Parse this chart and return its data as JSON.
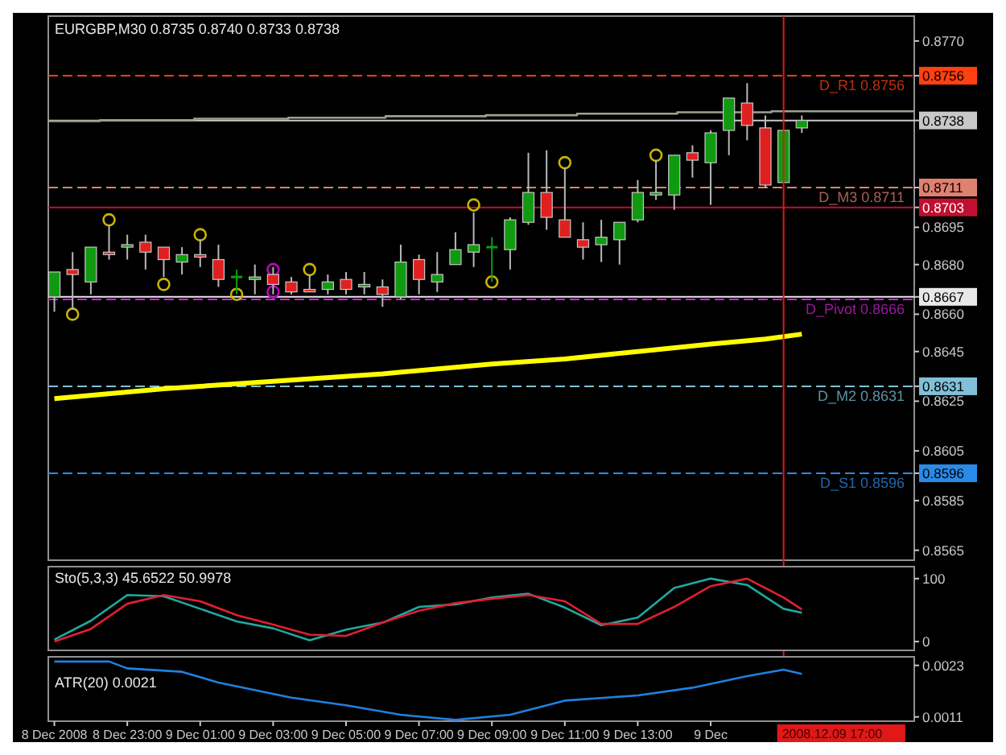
{
  "chart_data": [
    {
      "type": "candlestick",
      "title": "EURGBP,M30  0.8735 0.8740 0.8733 0.8738",
      "x": [
        "2008-12-08T21:00",
        "2008-12-08T21:30",
        "2008-12-08T22:00",
        "2008-12-08T22:30",
        "2008-12-08T23:00",
        "2008-12-08T23:30",
        "2008-12-09T00:00",
        "2008-12-09T00:30",
        "2008-12-09T01:00",
        "2008-12-09T01:30",
        "2008-12-09T02:00",
        "2008-12-09T02:30",
        "2008-12-09T03:00",
        "2008-12-09T03:30",
        "2008-12-09T04:00",
        "2008-12-09T04:30",
        "2008-12-09T05:00",
        "2008-12-09T05:30",
        "2008-12-09T06:00",
        "2008-12-09T06:30",
        "2008-12-09T07:00",
        "2008-12-09T07:30",
        "2008-12-09T08:00",
        "2008-12-09T08:30",
        "2008-12-09T09:00",
        "2008-12-09T09:30",
        "2008-12-09T10:00",
        "2008-12-09T10:30",
        "2008-12-09T11:00",
        "2008-12-09T11:30",
        "2008-12-09T12:00",
        "2008-12-09T12:30",
        "2008-12-09T13:00",
        "2008-12-09T13:30",
        "2008-12-09T14:00",
        "2008-12-09T14:30",
        "2008-12-09T15:00",
        "2008-12-09T15:30",
        "2008-12-09T16:00",
        "2008-12-09T16:30",
        "2008-12-09T17:00",
        "2008-12-09T17:30"
      ],
      "ohlc": [
        [
          0.8667,
          0.8677,
          0.8661,
          0.8677
        ],
        [
          0.8678,
          0.8685,
          0.8662,
          0.8676
        ],
        [
          0.8673,
          0.8687,
          0.8668,
          0.8687
        ],
        [
          0.8685,
          0.8696,
          0.8682,
          0.8684
        ],
        [
          0.8687,
          0.8692,
          0.8682,
          0.8688
        ],
        [
          0.8689,
          0.8692,
          0.8678,
          0.8685
        ],
        [
          0.8687,
          0.8687,
          0.8675,
          0.8682
        ],
        [
          0.8681,
          0.8687,
          0.8676,
          0.8684
        ],
        [
          0.8684,
          0.869,
          0.8679,
          0.8683
        ],
        [
          0.8682,
          0.8688,
          0.8671,
          0.8674
        ],
        [
          0.8675,
          0.8678,
          0.8668,
          0.8675
        ],
        [
          0.8674,
          0.868,
          0.8668,
          0.8675
        ],
        [
          0.8676,
          0.8679,
          0.8668,
          0.8672
        ],
        [
          0.8673,
          0.8675,
          0.8668,
          0.8669
        ],
        [
          0.867,
          0.8676,
          0.8669,
          0.8669
        ],
        [
          0.867,
          0.8676,
          0.8668,
          0.8673
        ],
        [
          0.8674,
          0.8677,
          0.8668,
          0.867
        ],
        [
          0.8671,
          0.8677,
          0.8668,
          0.8672
        ],
        [
          0.8671,
          0.8674,
          0.8663,
          0.8668
        ],
        [
          0.8667,
          0.8688,
          0.8666,
          0.8681
        ],
        [
          0.8682,
          0.8684,
          0.8668,
          0.8674
        ],
        [
          0.8673,
          0.8685,
          0.8669,
          0.8676
        ],
        [
          0.868,
          0.8693,
          0.868,
          0.8686
        ],
        [
          0.8685,
          0.8701,
          0.8679,
          0.8688
        ],
        [
          0.8687,
          0.8691,
          0.8673,
          0.8687
        ],
        [
          0.8686,
          0.8699,
          0.8678,
          0.8698
        ],
        [
          0.8697,
          0.8725,
          0.8696,
          0.8709
        ],
        [
          0.8709,
          0.8726,
          0.8694,
          0.8699
        ],
        [
          0.8698,
          0.8719,
          0.8691,
          0.8691
        ],
        [
          0.869,
          0.8697,
          0.8682,
          0.8687
        ],
        [
          0.8688,
          0.8698,
          0.8681,
          0.8691
        ],
        [
          0.869,
          0.8697,
          0.868,
          0.8697
        ],
        [
          0.8698,
          0.8714,
          0.8697,
          0.8709
        ],
        [
          0.8708,
          0.8722,
          0.8706,
          0.8709
        ],
        [
          0.8708,
          0.8724,
          0.8702,
          0.8724
        ],
        [
          0.8725,
          0.8728,
          0.8715,
          0.8722
        ],
        [
          0.8721,
          0.8734,
          0.8704,
          0.8733
        ],
        [
          0.8734,
          0.8747,
          0.8724,
          0.8747
        ],
        [
          0.8745,
          0.8753,
          0.873,
          0.8736
        ],
        [
          0.8735,
          0.874,
          0.8711,
          0.8712
        ],
        [
          0.8713,
          0.8734,
          0.8713,
          0.8734
        ],
        [
          0.8735,
          0.874,
          0.8733,
          0.8738
        ]
      ],
      "series": [
        {
          "type": "line",
          "color": "#ffff00",
          "x": [
            "2008-12-08T21:00",
            "2008-12-09T00:00",
            "2008-12-09T03:00",
            "2008-12-09T06:00",
            "2008-12-09T09:00",
            "2008-12-09T11:00",
            "2008-12-09T13:00",
            "2008-12-09T15:00",
            "2008-12-09T16:30",
            "2008-12-09T17:30"
          ],
          "values": [
            0.8626,
            0.863,
            0.8633,
            0.8636,
            0.864,
            0.8642,
            0.8645,
            0.8648,
            0.865,
            0.8652
          ]
        },
        {
          "type": "step",
          "color": "#a0a090",
          "x": [
            "2008-12-08T20:50",
            "2008-12-08T22:15",
            "2008-12-09T00:50",
            "2008-12-09T03:25",
            "2008-12-09T06:05",
            "2008-12-09T08:50",
            "2008-12-09T11:20",
            "2008-12-09T14:05",
            "2008-12-09T16:40",
            "2008-12-09T20:35"
          ],
          "values": [
            0.87377,
            0.87381,
            0.87387,
            0.87391,
            0.87397,
            0.87401,
            0.87407,
            0.87413,
            0.87417,
            0.87417
          ]
        },
        {
          "type": "scatter",
          "marker": "circle",
          "color": "#c8b400",
          "x": [
            "2008-12-08T21:30",
            "2008-12-08T22:30",
            "2008-12-09T00:00",
            "2008-12-09T01:00",
            "2008-12-09T02:00",
            "2008-12-09T04:00",
            "2008-12-09T08:30",
            "2008-12-09T09:00",
            "2008-12-09T11:00",
            "2008-12-09T13:30"
          ],
          "values": [
            0.866,
            0.8698,
            0.8672,
            0.8692,
            0.8668,
            0.8678,
            0.8704,
            0.8673,
            0.8721,
            0.8724
          ]
        },
        {
          "type": "scatter",
          "marker": "circle",
          "color": "#c000c0",
          "x": [
            "2008-12-09T03:00",
            "2008-12-09T03:00"
          ],
          "values": [
            0.8678,
            0.8669
          ]
        }
      ],
      "xlim": [
        "2008-12-08T20:50",
        "2008-12-09T20:35"
      ],
      "ylim": [
        0.8561,
        0.878
      ],
      "yticks": [
        {
          "value": 0.877,
          "label": "0.8770"
        },
        {
          "value": 0.8756,
          "label": "0.8756"
        },
        {
          "value": 0.8738,
          "label": "0.8738"
        },
        {
          "value": 0.8711,
          "label": "0.8711"
        },
        {
          "value": 0.8703,
          "label": "0.8703"
        },
        {
          "value": 0.8695,
          "label": "0.8695"
        },
        {
          "value": 0.868,
          "label": "0.8680"
        },
        {
          "value": 0.8667,
          "label": "0.8667"
        },
        {
          "value": 0.866,
          "label": "0.8660"
        },
        {
          "value": 0.8645,
          "label": "0.8645"
        },
        {
          "value": 0.8631,
          "label": "0.8631"
        },
        {
          "value": 0.8625,
          "label": "0.8625"
        },
        {
          "value": 0.8605,
          "label": "0.8605"
        },
        {
          "value": 0.8596,
          "label": "0.8596"
        },
        {
          "value": 0.8585,
          "label": "0.8585"
        },
        {
          "value": 0.8565,
          "label": "0.8565"
        }
      ],
      "ref_lines": [
        {
          "axis": "y",
          "value": 0.8756,
          "label": "D_R1 0.8756",
          "color": "#ff4010",
          "line_style": "dashed"
        },
        {
          "axis": "y",
          "value": 0.8738,
          "label": null,
          "color": "#c8c8c8",
          "line_style": "solid"
        },
        {
          "axis": "y",
          "value": 0.8711,
          "label": "D_M3 0.8711",
          "color": "#e08070",
          "line_style": "dashed"
        },
        {
          "axis": "y",
          "value": 0.8703,
          "label": null,
          "color": "#c01030",
          "line_style": "solid"
        },
        {
          "axis": "y",
          "value": 0.8667,
          "label": null,
          "color": "#e8e8e8",
          "line_style": "solid"
        },
        {
          "axis": "y",
          "value": 0.8666,
          "label": "D_Pivot 0.8666",
          "color": "#d020d0",
          "line_style": "dashed"
        },
        {
          "axis": "y",
          "value": 0.8631,
          "label": "D_M2 0.8631",
          "color": "#80c0d8",
          "line_style": "dashed"
        },
        {
          "axis": "y",
          "value": 0.8596,
          "label": "D_S1 0.8596",
          "color": "#2a8ae8",
          "line_style": "dashed"
        },
        {
          "axis": "x",
          "value": "2008-12-09T17:00",
          "label": "2008.12.09 17:00",
          "color": "#e01818",
          "line_style": "solid"
        }
      ],
      "tick_labels": "y"
    },
    {
      "type": "line",
      "title": "Sto(5,3,3) 45.6522 50.9978",
      "x": [
        "2008-12-08T21:00",
        "2008-12-08T22:00",
        "2008-12-08T23:00",
        "2008-12-09T00:00",
        "2008-12-09T01:00",
        "2008-12-09T02:00",
        "2008-12-09T03:00",
        "2008-12-09T04:00",
        "2008-12-09T05:00",
        "2008-12-09T06:00",
        "2008-12-09T07:00",
        "2008-12-09T08:00",
        "2008-12-09T09:00",
        "2008-12-09T10:00",
        "2008-12-09T11:00",
        "2008-12-09T12:00",
        "2008-12-09T13:00",
        "2008-12-09T14:00",
        "2008-12-09T15:00",
        "2008-12-09T16:00",
        "2008-12-09T17:00",
        "2008-12-09T17:30"
      ],
      "series": [
        {
          "color": "#20a8a0",
          "values": [
            3,
            33,
            74,
            72,
            52,
            32,
            21,
            2,
            19,
            30,
            55,
            59,
            70,
            76,
            54,
            26,
            38,
            85,
            100,
            90,
            52,
            45.6522
          ]
        },
        {
          "color": "#e02030",
          "values": [
            0,
            20,
            60,
            74,
            64,
            42,
            27,
            11,
            9,
            30,
            49,
            61,
            68,
            74,
            64,
            28,
            28,
            55,
            88,
            100,
            70,
            50.9978
          ]
        }
      ],
      "xlim": [
        "2008-12-08T20:50",
        "2008-12-09T20:35"
      ],
      "ylim": [
        -14,
        119
      ],
      "yticks": [
        {
          "value": 100,
          "label": "100"
        },
        {
          "value": 0,
          "label": "0"
        }
      ],
      "tick_labels": "y"
    },
    {
      "type": "line",
      "title": "ATR(20) 0.0021",
      "x": [
        "2008-12-08T21:00",
        "2008-12-08T22:30",
        "2008-12-08T23:00",
        "2008-12-09T00:30",
        "2008-12-09T01:30",
        "2008-12-09T03:30",
        "2008-12-09T05:00",
        "2008-12-09T06:30",
        "2008-12-09T08:00",
        "2008-12-09T09:30",
        "2008-12-09T11:00",
        "2008-12-09T13:00",
        "2008-12-09T14:30",
        "2008-12-09T16:00",
        "2008-12-09T17:00",
        "2008-12-09T17:30"
      ],
      "series": [
        {
          "color": "#2080e0",
          "values": [
            0.00239,
            0.00239,
            0.00223,
            0.00215,
            0.0019,
            0.00155,
            0.00137,
            0.00115,
            0.00103,
            0.00115,
            0.00148,
            0.0016,
            0.00178,
            0.00205,
            0.0022,
            0.0021
          ]
        }
      ],
      "xlim": [
        "2008-12-08T20:50",
        "2008-12-09T20:35"
      ],
      "ylim": [
        0.001,
        0.0025
      ],
      "yticks": [
        {
          "value": 0.0023,
          "label": "0.0023"
        },
        {
          "value": 0.0011,
          "label": "0.0011"
        }
      ],
      "xticks": [
        {
          "value": "2008-12-08T21:00",
          "label": "8 Dec 2008"
        },
        {
          "value": "2008-12-08T23:00",
          "label": "8 Dec 23:00"
        },
        {
          "value": "2008-12-09T01:00",
          "label": "9 Dec 01:00"
        },
        {
          "value": "2008-12-09T03:00",
          "label": "9 Dec 03:00"
        },
        {
          "value": "2008-12-09T05:00",
          "label": "9 Dec 05:00"
        },
        {
          "value": "2008-12-09T07:00",
          "label": "9 Dec 07:00"
        },
        {
          "value": "2008-12-09T09:00",
          "label": "9 Dec 09:00"
        },
        {
          "value": "2008-12-09T11:00",
          "label": "9 Dec 11:00"
        },
        {
          "value": "2008-12-09T13:00",
          "label": "9 Dec 13:00"
        },
        {
          "value": "2008-12-09T15:00",
          "label": "9 Dec"
        }
      ]
    }
  ]
}
